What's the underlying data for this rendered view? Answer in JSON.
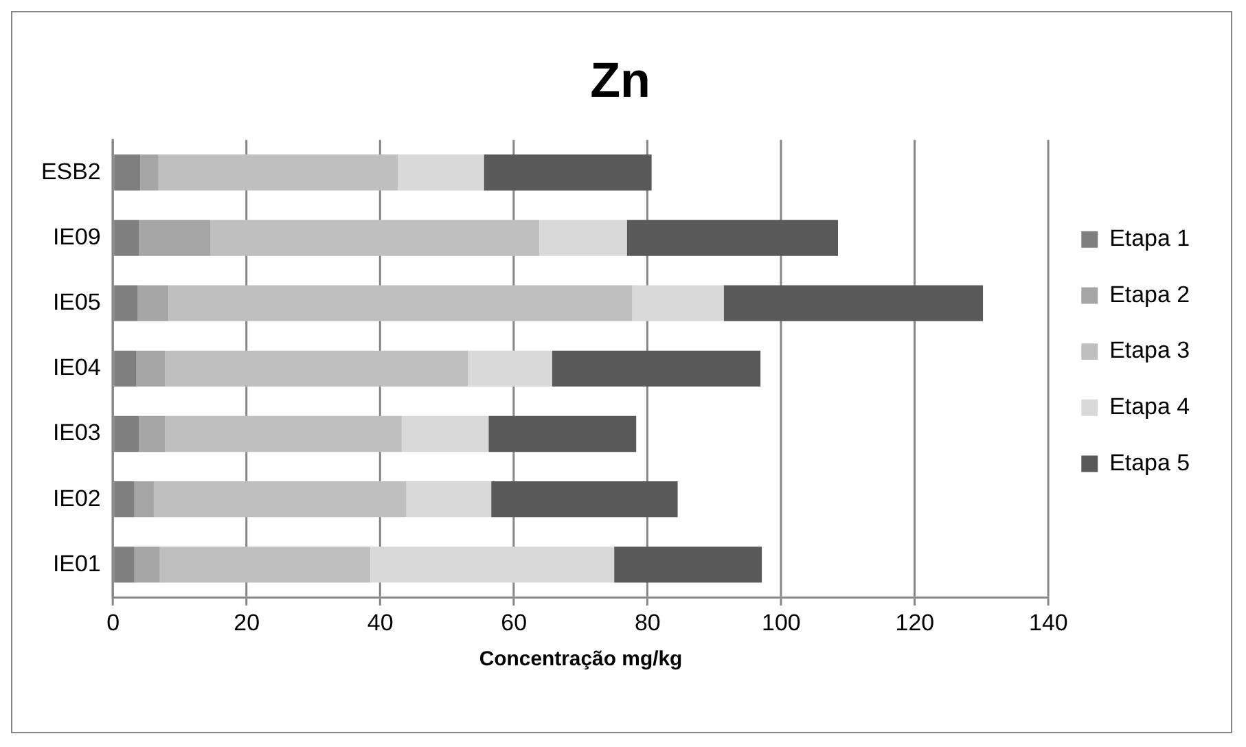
{
  "chart_data": {
    "type": "bar",
    "title": "Zn",
    "xlabel": "Concentração mg/kg",
    "orientation": "horizontal",
    "stacked": true,
    "categories": [
      "ESB2",
      "IE09",
      "IE05",
      "IE04",
      "IE03",
      "IE02",
      "IE01"
    ],
    "series": [
      {
        "name": "Etapa 1",
        "color": "#7f7f7f",
        "values": [
          4.1,
          3.9,
          3.7,
          3.5,
          3.9,
          3.2,
          3.2
        ]
      },
      {
        "name": "Etapa 2",
        "color": "#a5a5a5",
        "values": [
          2.7,
          10.7,
          4.6,
          4.3,
          3.9,
          2.9,
          3.8
        ]
      },
      {
        "name": "Etapa 3",
        "color": "#bfbfbf",
        "values": [
          35.8,
          49.2,
          69.4,
          45.3,
          35.4,
          37.8,
          31.5
        ]
      },
      {
        "name": "Etapa 4",
        "color": "#d9d9d9",
        "values": [
          12.9,
          13.1,
          13.7,
          12.6,
          13.0,
          12.7,
          36.5
        ]
      },
      {
        "name": "Etapa 5",
        "color": "#595959",
        "values": [
          25.1,
          31.6,
          38.8,
          31.2,
          22.1,
          27.9,
          22.1
        ]
      }
    ],
    "xlim": [
      0,
      140
    ],
    "xticks": [
      0,
      20,
      40,
      60,
      80,
      100,
      120,
      140
    ],
    "grid": "x",
    "legend": "right"
  }
}
